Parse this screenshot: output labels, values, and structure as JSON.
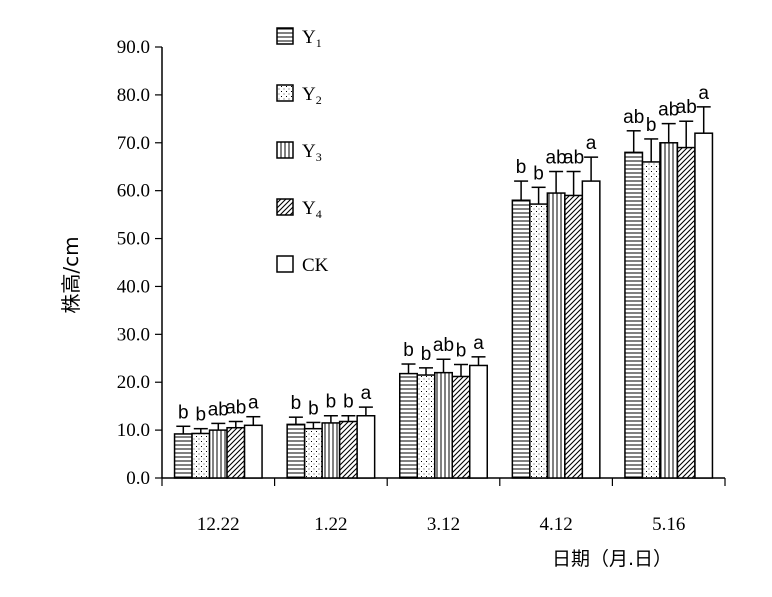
{
  "chart_data": {
    "type": "bar",
    "ylabel": "株高/cm",
    "xlabel": "日期（月.日）",
    "ylim": [
      0,
      90
    ],
    "y_ticks": [
      "0.0",
      "10.0",
      "20.0",
      "30.0",
      "40.0",
      "50.0",
      "60.0",
      "70.0",
      "80.0",
      "90.0"
    ],
    "categories": [
      "12.22",
      "1.22",
      "3.12",
      "4.12",
      "5.16"
    ],
    "series": [
      {
        "name": "Y1",
        "label_main": "Y",
        "label_sub": "1",
        "pattern": "horizontal",
        "values": [
          9.2,
          11.2,
          21.8,
          58.0,
          68.0
        ],
        "errors": [
          1.6,
          1.5,
          2.0,
          4.0,
          4.5
        ],
        "letters": [
          "b",
          "b",
          "b",
          "b",
          "ab"
        ]
      },
      {
        "name": "Y2",
        "label_main": "Y",
        "label_sub": "2",
        "pattern": "dots",
        "values": [
          9.3,
          10.3,
          21.5,
          57.2,
          66.0
        ],
        "errors": [
          1.0,
          1.3,
          1.5,
          3.5,
          4.8
        ],
        "letters": [
          "b",
          "b",
          "b",
          "b",
          "b"
        ]
      },
      {
        "name": "Y3",
        "label_main": "Y",
        "label_sub": "3",
        "pattern": "vertical",
        "values": [
          10.0,
          11.5,
          22.0,
          59.5,
          70.0
        ],
        "errors": [
          1.4,
          1.5,
          2.8,
          4.5,
          4.0
        ],
        "letters": [
          "ab",
          "b",
          "ab",
          "ab",
          "ab"
        ]
      },
      {
        "name": "Y4",
        "label_main": "Y",
        "label_sub": "4",
        "pattern": "diagonal",
        "values": [
          10.5,
          11.8,
          21.2,
          59.0,
          69.0
        ],
        "errors": [
          1.3,
          1.2,
          2.5,
          5.0,
          5.5
        ],
        "letters": [
          "ab",
          "b",
          "b",
          "ab",
          "ab"
        ]
      },
      {
        "name": "CK",
        "label_main": "CK",
        "label_sub": "",
        "pattern": "none",
        "values": [
          11.0,
          13.0,
          23.5,
          62.0,
          72.0
        ],
        "errors": [
          1.8,
          1.8,
          1.8,
          5.0,
          5.5
        ],
        "letters": [
          "a",
          "a",
          "a",
          "a",
          "a"
        ]
      }
    ],
    "legend_position": "top-left"
  }
}
